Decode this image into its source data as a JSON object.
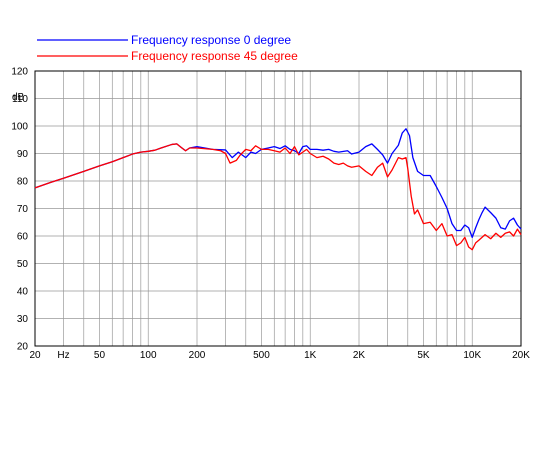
{
  "chart_data": {
    "type": "line",
    "title": "",
    "xlabel": "",
    "ylabel": "dB",
    "x_scale": "log",
    "xlim": [
      20,
      20000
    ],
    "ylim": [
      20,
      120
    ],
    "grid": true,
    "legend_position": "top",
    "y_ticks": [
      "20",
      "30",
      "40",
      "50",
      "60",
      "70",
      "80",
      "90",
      "100",
      "110",
      "120"
    ],
    "x_tick_labels": [
      "20",
      "Hz",
      "50",
      "100",
      "200",
      "500",
      "1K",
      "2K",
      "5K",
      "10K",
      "20K"
    ],
    "series": [
      {
        "name": "Frequency response 0 degree",
        "color": "#0000ff",
        "points": [
          [
            20,
            77.5
          ],
          [
            25,
            79.5
          ],
          [
            30,
            81
          ],
          [
            40,
            83.5
          ],
          [
            50,
            85.5
          ],
          [
            60,
            87
          ],
          [
            70,
            88.5
          ],
          [
            80,
            89.8
          ],
          [
            90,
            90.5
          ],
          [
            100,
            90.8
          ],
          [
            110,
            91.2
          ],
          [
            120,
            92
          ],
          [
            140,
            93.3
          ],
          [
            150,
            93.5
          ],
          [
            160,
            92.2
          ],
          [
            170,
            91
          ],
          [
            180,
            92
          ],
          [
            200,
            92.5
          ],
          [
            250,
            91.5
          ],
          [
            300,
            91.3
          ],
          [
            330,
            88.5
          ],
          [
            360,
            90.5
          ],
          [
            400,
            88.5
          ],
          [
            430,
            90.5
          ],
          [
            460,
            90
          ],
          [
            500,
            91.5
          ],
          [
            550,
            92
          ],
          [
            600,
            92.5
          ],
          [
            650,
            91.8
          ],
          [
            700,
            92.8
          ],
          [
            750,
            91.5
          ],
          [
            800,
            91
          ],
          [
            850,
            90
          ],
          [
            900,
            92.5
          ],
          [
            950,
            92.8
          ],
          [
            1000,
            91.5
          ],
          [
            1100,
            91.5
          ],
          [
            1200,
            91.2
          ],
          [
            1300,
            91.5
          ],
          [
            1400,
            90.8
          ],
          [
            1500,
            90.5
          ],
          [
            1700,
            91
          ],
          [
            1800,
            89.8
          ],
          [
            2000,
            90.5
          ],
          [
            2200,
            92.5
          ],
          [
            2400,
            93.5
          ],
          [
            2600,
            91.5
          ],
          [
            2800,
            89.5
          ],
          [
            3000,
            86.5
          ],
          [
            3200,
            90
          ],
          [
            3500,
            93
          ],
          [
            3700,
            97.5
          ],
          [
            3900,
            99
          ],
          [
            4100,
            96.5
          ],
          [
            4300,
            88.5
          ],
          [
            4600,
            83.5
          ],
          [
            5000,
            82
          ],
          [
            5500,
            82
          ],
          [
            6000,
            78
          ],
          [
            6500,
            74
          ],
          [
            7000,
            70
          ],
          [
            7500,
            64.5
          ],
          [
            8000,
            62
          ],
          [
            8500,
            62
          ],
          [
            9000,
            64
          ],
          [
            9500,
            63
          ],
          [
            10000,
            59.5
          ],
          [
            10500,
            63
          ],
          [
            11000,
            66
          ],
          [
            11500,
            68.5
          ],
          [
            12000,
            70.5
          ],
          [
            13000,
            68.5
          ],
          [
            14000,
            66.5
          ],
          [
            15000,
            63
          ],
          [
            16000,
            62.5
          ],
          [
            17000,
            65.5
          ],
          [
            18000,
            66.5
          ],
          [
            19000,
            64
          ],
          [
            20000,
            62.5
          ]
        ]
      },
      {
        "name": "Frequency response 45 degree",
        "color": "#ff0000",
        "points": [
          [
            20,
            77.5
          ],
          [
            25,
            79.5
          ],
          [
            30,
            81
          ],
          [
            40,
            83.5
          ],
          [
            50,
            85.5
          ],
          [
            60,
            87
          ],
          [
            70,
            88.5
          ],
          [
            80,
            89.8
          ],
          [
            90,
            90.5
          ],
          [
            100,
            90.8
          ],
          [
            110,
            91.2
          ],
          [
            120,
            92
          ],
          [
            140,
            93.3
          ],
          [
            150,
            93.5
          ],
          [
            160,
            92.2
          ],
          [
            170,
            91
          ],
          [
            180,
            92
          ],
          [
            200,
            92
          ],
          [
            250,
            91.5
          ],
          [
            280,
            91
          ],
          [
            300,
            90
          ],
          [
            320,
            86.5
          ],
          [
            350,
            87.5
          ],
          [
            370,
            89.5
          ],
          [
            400,
            91.5
          ],
          [
            430,
            91
          ],
          [
            460,
            92.8
          ],
          [
            500,
            91.5
          ],
          [
            550,
            91.5
          ],
          [
            600,
            91
          ],
          [
            650,
            90.5
          ],
          [
            700,
            92
          ],
          [
            750,
            90
          ],
          [
            800,
            92.5
          ],
          [
            850,
            89.5
          ],
          [
            900,
            90.5
          ],
          [
            950,
            91.5
          ],
          [
            1000,
            90
          ],
          [
            1100,
            88.5
          ],
          [
            1200,
            89
          ],
          [
            1300,
            88
          ],
          [
            1400,
            86.5
          ],
          [
            1500,
            86
          ],
          [
            1600,
            86.5
          ],
          [
            1700,
            85.5
          ],
          [
            1800,
            85
          ],
          [
            2000,
            85.5
          ],
          [
            2200,
            83.5
          ],
          [
            2400,
            82
          ],
          [
            2600,
            85
          ],
          [
            2800,
            86.5
          ],
          [
            3000,
            81.5
          ],
          [
            3200,
            84
          ],
          [
            3500,
            88.5
          ],
          [
            3700,
            88
          ],
          [
            3900,
            88.5
          ],
          [
            4000,
            84.5
          ],
          [
            4200,
            74.5
          ],
          [
            4400,
            68
          ],
          [
            4600,
            69.5
          ],
          [
            5000,
            64.5
          ],
          [
            5500,
            65
          ],
          [
            6000,
            62
          ],
          [
            6500,
            64.5
          ],
          [
            7000,
            60
          ],
          [
            7500,
            60.5
          ],
          [
            8000,
            56.5
          ],
          [
            8500,
            57.5
          ],
          [
            9000,
            59.5
          ],
          [
            9500,
            56
          ],
          [
            10000,
            55
          ],
          [
            10500,
            57.5
          ],
          [
            11000,
            58.5
          ],
          [
            12000,
            60.5
          ],
          [
            13000,
            59
          ],
          [
            14000,
            61
          ],
          [
            15000,
            59.5
          ],
          [
            16000,
            61
          ],
          [
            17000,
            61.5
          ],
          [
            18000,
            60
          ],
          [
            19000,
            62.5
          ],
          [
            20000,
            60.5
          ]
        ]
      }
    ]
  }
}
